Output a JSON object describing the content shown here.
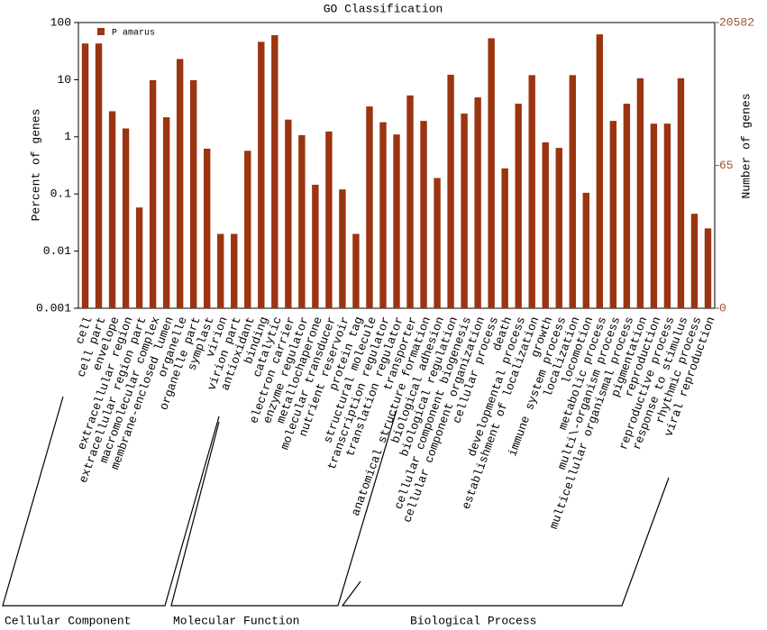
{
  "chart_data": {
    "type": "bar",
    "title": "GO Classification",
    "y_label": "Percent of genes",
    "y2_label": "Number of genes",
    "log_scale": true,
    "legend": "upper left",
    "groups": [
      "Cellular Component",
      "Molecular Function",
      "Biological Process"
    ],
    "categories": [
      "cell",
      "cell part",
      "envelope",
      "extracellular region",
      "extracellular region part",
      "macromolecular complex",
      "membrane-enclosed lumen",
      "organelle",
      "organelle part",
      "symplast",
      "virion",
      "virion part",
      "antioxidant",
      "binding",
      "catalytic",
      "electron carrier",
      "enzyme regulator",
      "metallochaperone",
      "molecular transducer",
      "nutrient reservoir",
      "protein tag",
      "structural molecule",
      "transcription regulator",
      "translation regulator",
      "transporter",
      "anatomical structure formation",
      "biological adhesion",
      "biological regulation",
      "cellular component biogenesis",
      "cellular component organization",
      "cellular process",
      "death",
      "developmental process",
      "establishment of localization",
      "growth",
      "immune system process",
      "localization",
      "locomotion",
      "metabolic process",
      "multi\\-organism process",
      "multicellular organismal process",
      "pigmentation",
      "reproduction",
      "reproductive process",
      "response to stimulus",
      "rhythmic process",
      "viral reproduction"
    ],
    "series": [
      {
        "name": "P amarus",
        "color": "#9b3410",
        "values": [
          43,
          43,
          2.8,
          1.4,
          0.058,
          9.8,
          2.2,
          23,
          9.8,
          0.62,
          0.02,
          0.02,
          0.57,
          46,
          60,
          2.0,
          1.07,
          0.145,
          1.24,
          0.12,
          0.02,
          3.4,
          1.8,
          1.1,
          5.3,
          1.9,
          0.19,
          12.2,
          2.55,
          4.9,
          53,
          0.28,
          3.8,
          12,
          0.8,
          0.64,
          12,
          0.105,
          62,
          1.9,
          3.8,
          10.6,
          1.7,
          1.7,
          10.6,
          0.045,
          0.025
        ]
      }
    ],
    "ylim": [
      0.001,
      100
    ],
    "yticks": [
      0.001,
      0.01,
      0.1,
      1,
      10,
      100
    ],
    "y2lim": [
      0.20582,
      20582
    ],
    "y2ticks": [
      {
        "value": 0.20582,
        "label": "0"
      },
      65,
      20582
    ]
  }
}
